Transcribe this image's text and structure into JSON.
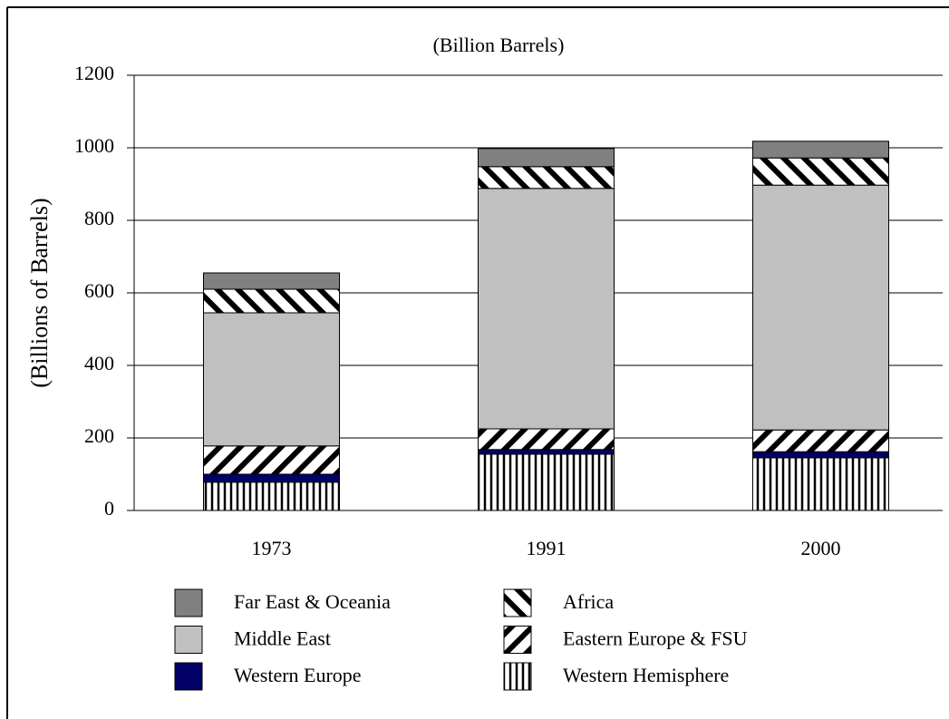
{
  "chart_data": {
    "type": "stacked-bar",
    "subtitle": "(Billion Barrels)",
    "y_label": "(Billions of Barrels)",
    "categories": [
      "1973",
      "1991",
      "2000"
    ],
    "series": [
      {
        "name": "Western Hemisphere",
        "color": "#000000",
        "hatch": "vertical",
        "values": [
          78,
          155,
          145
        ]
      },
      {
        "name": "Western Europe",
        "color": "#000066",
        "values": [
          22,
          13,
          17
        ]
      },
      {
        "name": "Eastern Europe & FSU",
        "color": "#000000",
        "hatch": "slash",
        "values": [
          78,
          57,
          60
        ]
      },
      {
        "name": "Middle East",
        "color": "#c0c0c0",
        "values": [
          367,
          663,
          675
        ]
      },
      {
        "name": "Africa",
        "color": "#000000",
        "hatch": "backslash",
        "values": [
          65,
          60,
          75
        ]
      },
      {
        "name": "Far East & Oceania",
        "color": "#808080",
        "values": [
          45,
          50,
          46
        ]
      }
    ],
    "ylim": [
      0,
      1200
    ],
    "yticks": [
      0,
      200,
      400,
      600,
      800,
      1000,
      1200
    ],
    "grid": true
  }
}
